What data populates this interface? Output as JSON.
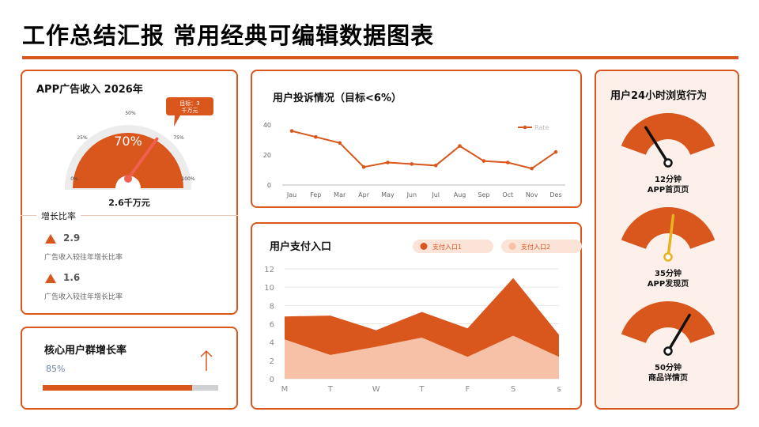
{
  "page": {
    "title": "工作总结汇报 常用经典可编辑数据图表"
  },
  "colors": {
    "accent": "#d9561c",
    "light": "#f6c1a6",
    "pale_bg": "#fdf0ea",
    "needle_gold": "#e8b320",
    "needle_red": "#f06050"
  },
  "revenue": {
    "title": "APP广告收入 2026年",
    "gauge_percent": "70%",
    "gauge_value": 0.7,
    "scale_labels": [
      "0%",
      "25%",
      "50%",
      "75%",
      "100%"
    ],
    "target_label_line1": "目标：3",
    "target_label_line2": "千万元",
    "amount": "2.6千万元",
    "growth_section_label": "增长比率",
    "growth_items": [
      {
        "value": "2.9",
        "desc": "广告收入较往年增长比率"
      },
      {
        "value": "1.6",
        "desc": "广告收入较往年增长比率"
      }
    ]
  },
  "core_users": {
    "title": "核心用户群增长率",
    "percent_text": "85%",
    "progress": 0.85,
    "icon": "arrow-up-icon"
  },
  "complaints": {
    "title": "用户投诉情况（目标<6%）",
    "chart_data": {
      "type": "line",
      "categories": [
        "Jau",
        "Fep",
        "Mar",
        "Apr",
        "May",
        "Jun",
        "Jul",
        "Aug",
        "Sep",
        "Oct",
        "Nov",
        "Des"
      ],
      "series": [
        {
          "name": "Rate",
          "values": [
            36,
            32,
            28,
            12,
            15,
            14,
            13,
            26,
            16,
            15,
            11,
            22
          ]
        }
      ],
      "yticks": [
        "0",
        "20",
        "40"
      ],
      "ylim": [
        0,
        40
      ],
      "legend_position": "top-right",
      "grid": false
    }
  },
  "payments": {
    "title": "用户支付入口",
    "chart_data": {
      "type": "area",
      "categories": [
        "M",
        "T",
        "W",
        "T",
        "F",
        "S",
        "s"
      ],
      "series": [
        {
          "name": "支付入口1",
          "values": [
            6.8,
            6.9,
            5.3,
            7.3,
            5.5,
            11,
            4.8
          ]
        },
        {
          "name": "支付入口2",
          "values": [
            4.3,
            2.6,
            3.5,
            4.5,
            2.4,
            4.7,
            2.4
          ]
        }
      ],
      "yticks": [
        "0",
        "2",
        "4",
        "6",
        "8",
        "10",
        "12"
      ],
      "ylim": [
        0,
        12
      ],
      "legend_position": "top-right",
      "grid": true
    }
  },
  "browsing": {
    "title": "用户24小时浏览行为",
    "gauges": [
      {
        "time": "12分钟",
        "label": "APP首页页",
        "value": 0.27,
        "needle": "dark"
      },
      {
        "time": "35分钟",
        "label": "APP发现页",
        "value": 0.55,
        "needle": "gold"
      },
      {
        "time": "50分钟",
        "label": "商品详情页",
        "value": 0.72,
        "needle": "dark"
      }
    ]
  }
}
